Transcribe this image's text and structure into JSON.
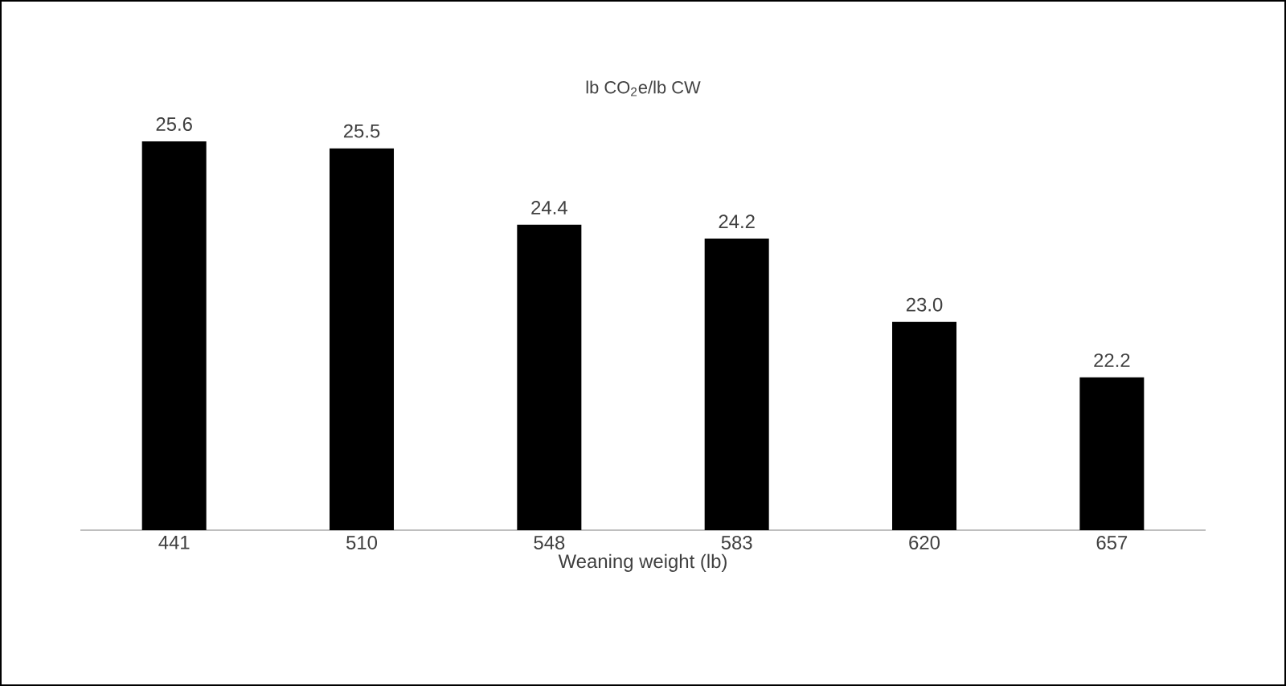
{
  "chart_data": {
    "type": "bar",
    "title": "lb CO$_{2}$e/lb CW",
    "xlabel": "Weaning weight (lb)",
    "categories": [
      "441",
      "510",
      "548",
      "583",
      "620",
      "657"
    ],
    "values": [
      25.6,
      25.5,
      24.4,
      24.2,
      23.0,
      22.2
    ],
    "value_labels": [
      "25.6",
      "25.5",
      "24.4",
      "24.2",
      "23.0",
      "22.2"
    ],
    "color": "#000000",
    "ylim": [
      20,
      25.6
    ],
    "tick_labels": "x"
  }
}
